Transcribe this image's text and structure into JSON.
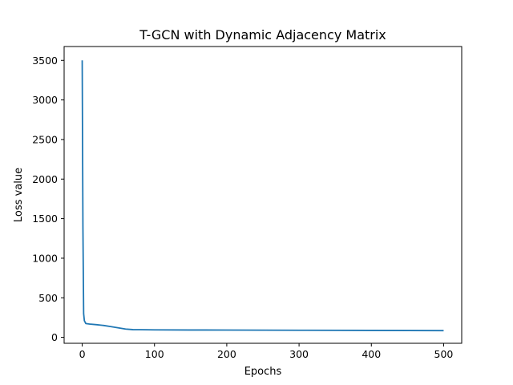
{
  "chart_data": {
    "type": "line",
    "title": "T-GCN with Dynamic Adjacency Matrix",
    "xlabel": "Epochs",
    "ylabel": "Loss value",
    "xlim": [
      -25,
      525
    ],
    "ylim": [
      -75,
      3675
    ],
    "xticks": [
      0,
      100,
      200,
      300,
      400,
      500
    ],
    "yticks": [
      0,
      500,
      1000,
      1500,
      2000,
      2500,
      3000,
      3500
    ],
    "grid": false,
    "line_color": "#1f77b4",
    "series": [
      {
        "x": [
          0,
          1,
          2,
          3,
          5,
          10,
          20,
          30,
          40,
          50,
          60,
          70,
          80,
          100,
          150,
          200,
          300,
          400,
          500
        ],
        "values": [
          3500,
          1400,
          300,
          210,
          175,
          168,
          160,
          150,
          135,
          120,
          105,
          98,
          97,
          95,
          93,
          92,
          90,
          88,
          85
        ]
      }
    ]
  }
}
